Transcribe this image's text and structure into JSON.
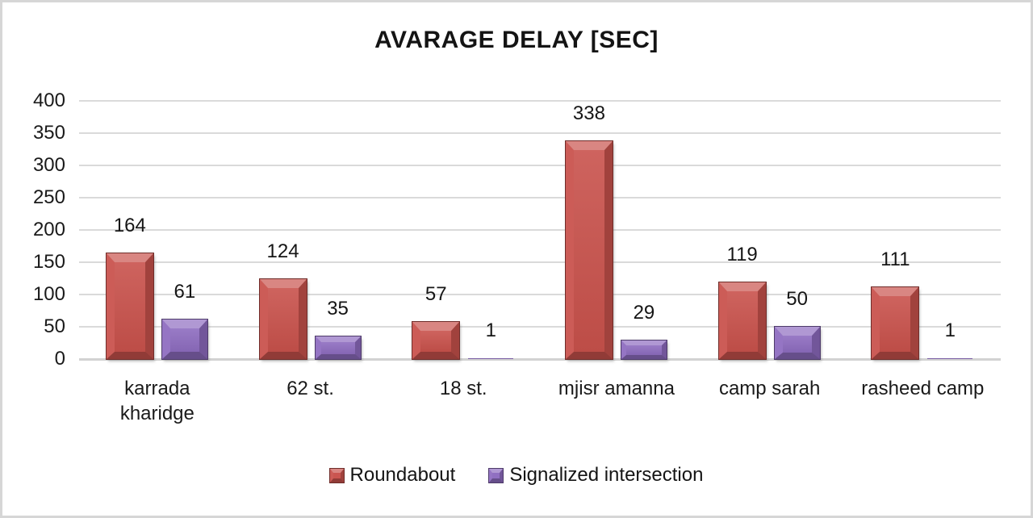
{
  "chart_data": {
    "type": "bar",
    "title": "AVARAGE DELAY [SEC]",
    "categories": [
      "karrada kharidge",
      "62 st.",
      "18 st.",
      "mjisr amanna",
      "camp sarah",
      "rasheed camp"
    ],
    "series": [
      {
        "name": "Roundabout",
        "color": "#C9524C",
        "values": [
          164,
          124,
          57,
          338,
          119,
          111
        ]
      },
      {
        "name": "Signalized intersection",
        "color": "#8E6CC0",
        "values": [
          61,
          35,
          1,
          29,
          50,
          1
        ]
      }
    ],
    "xlabel": "",
    "ylabel": "",
    "ylim": [
      0,
      400
    ],
    "yticks": [
      0,
      50,
      100,
      150,
      200,
      250,
      300,
      350,
      400
    ],
    "grid": true,
    "data_labels": true,
    "legend_position": "bottom",
    "bar_style": "bevel-3d",
    "colors": {
      "text": "#1A1A1A",
      "gridline": "#DADADA",
      "frame_border": "#D6D6D6",
      "background": "#FFFFFF"
    }
  }
}
